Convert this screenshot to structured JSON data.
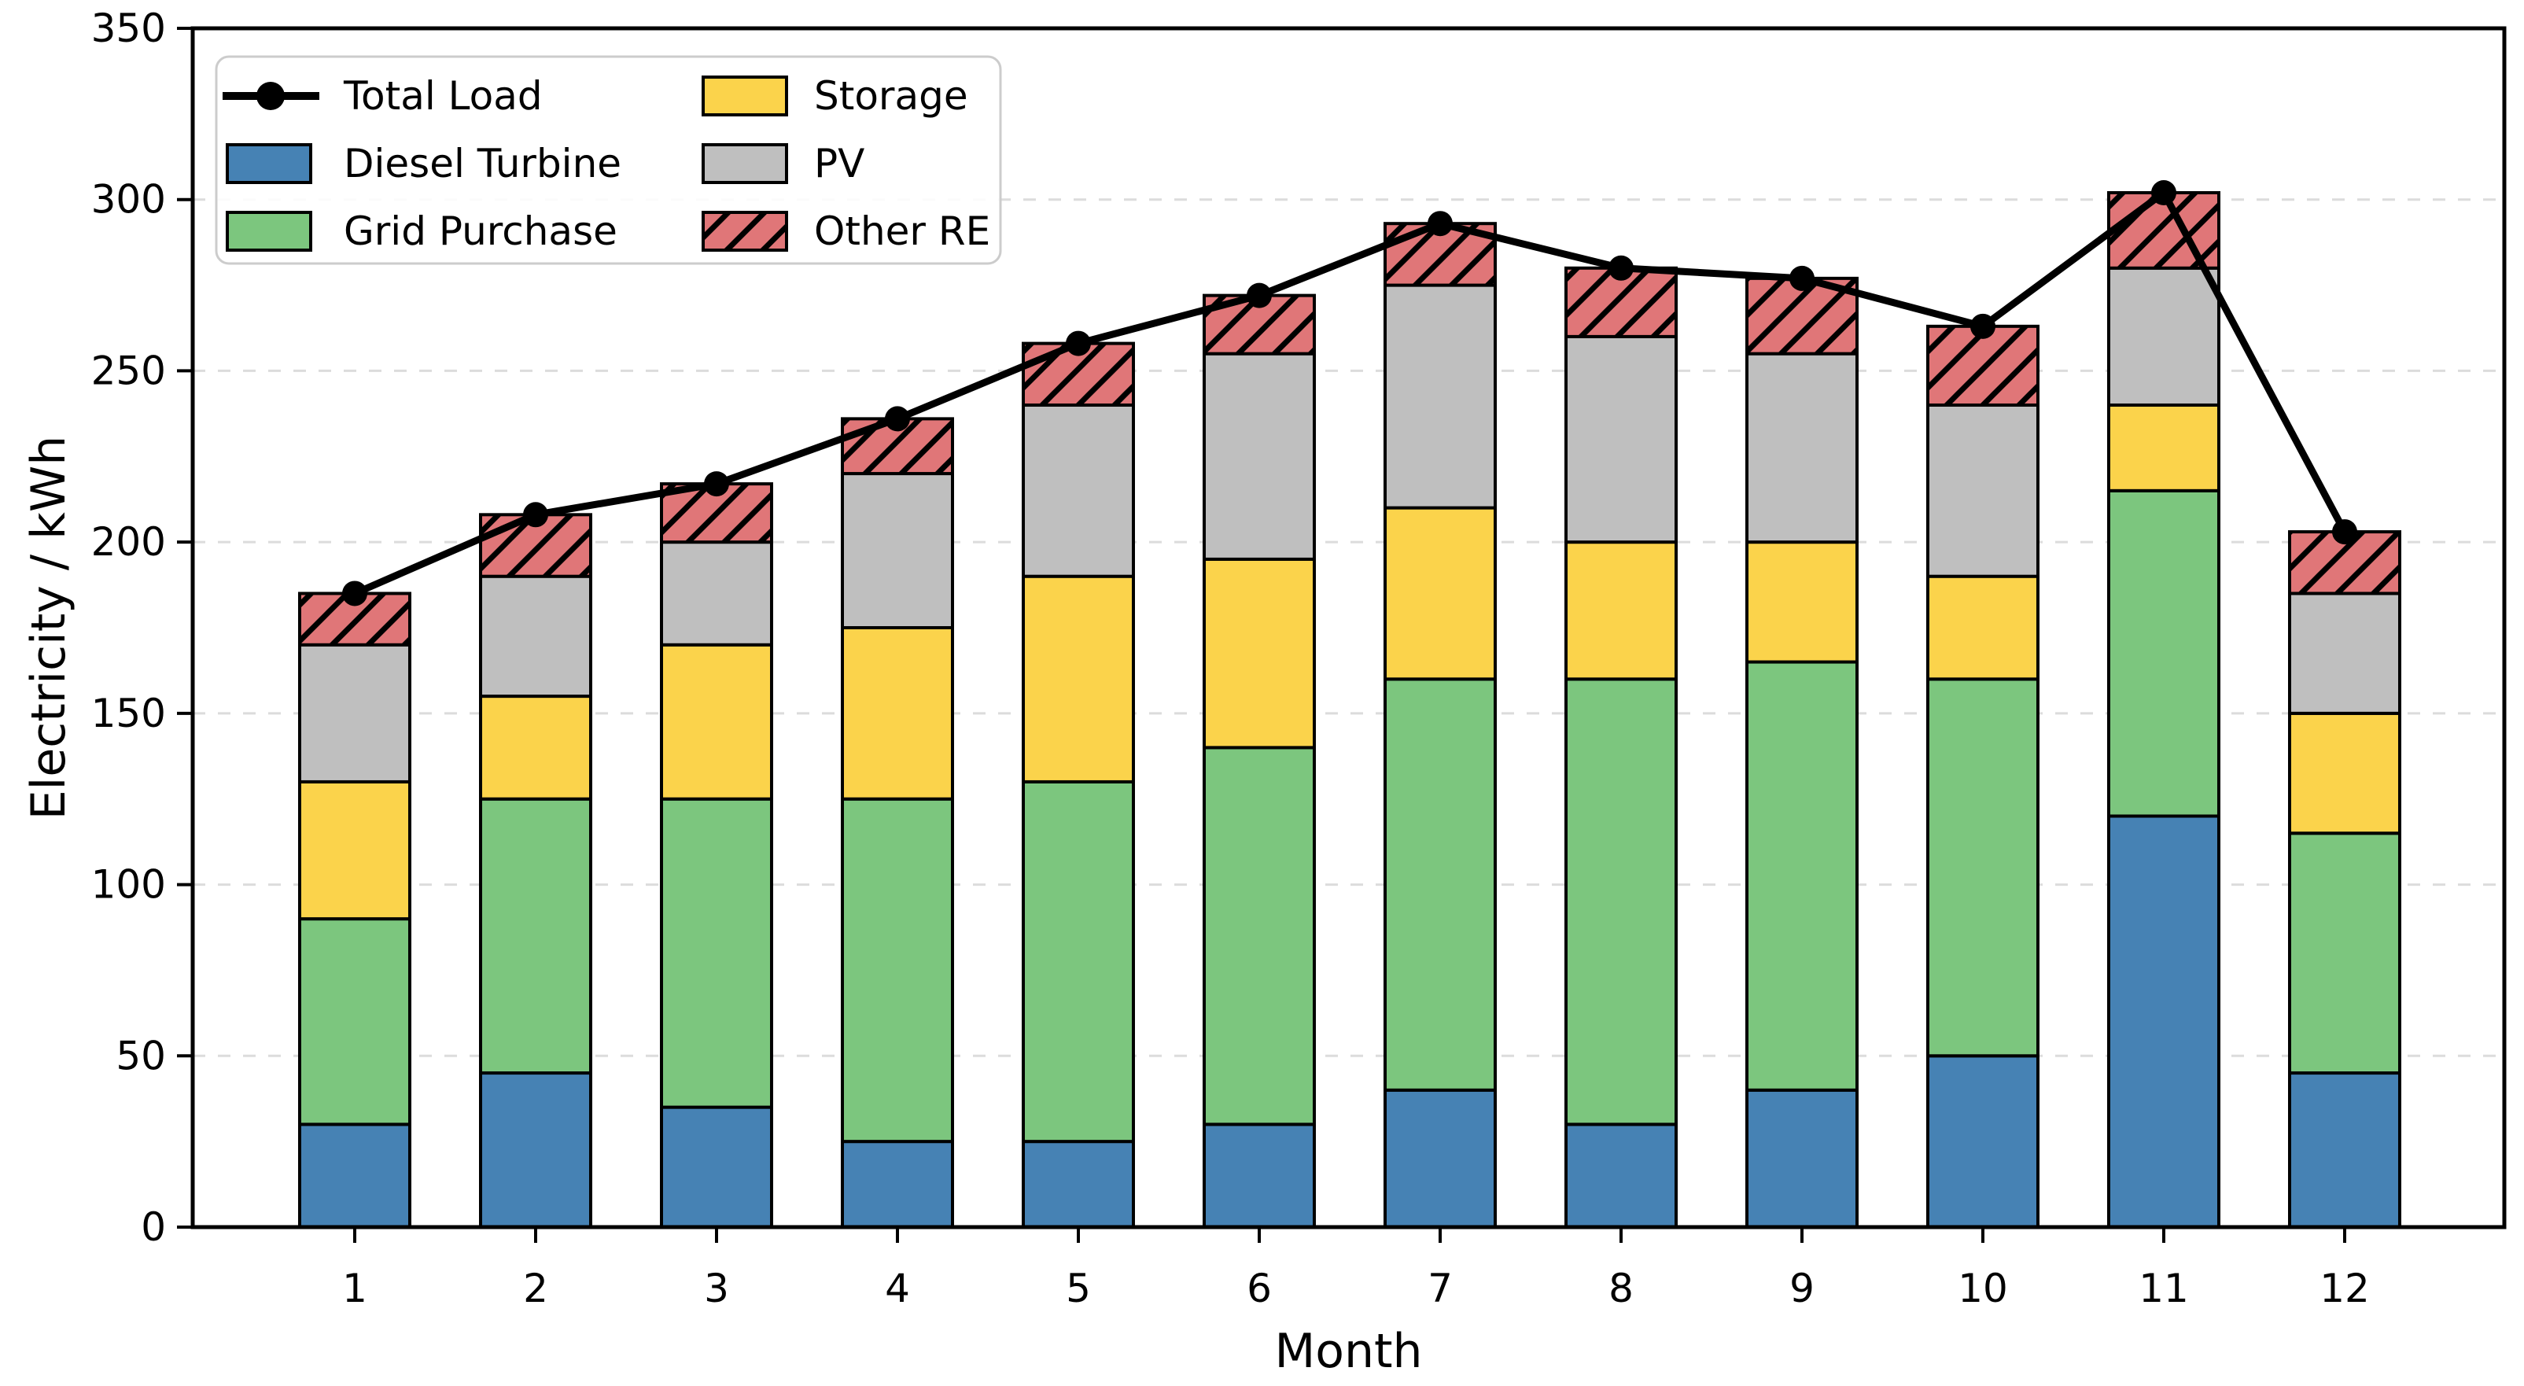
{
  "chart_data": {
    "type": "bar",
    "subtype": "stacked-bars-with-total-line",
    "title": "",
    "xlabel": "Month",
    "ylabel": "Electricity / kWh",
    "categories": [
      "1",
      "2",
      "3",
      "4",
      "5",
      "6",
      "7",
      "8",
      "9",
      "10",
      "11",
      "12"
    ],
    "series": [
      {
        "name": "Diesel Turbine",
        "color": "#4682B4",
        "hatch": false,
        "values": [
          30,
          45,
          35,
          25,
          25,
          30,
          40,
          30,
          40,
          50,
          120,
          45
        ]
      },
      {
        "name": "Grid Purchase",
        "color": "#7CC67E",
        "hatch": false,
        "values": [
          60,
          80,
          90,
          100,
          105,
          110,
          120,
          130,
          125,
          110,
          95,
          70
        ]
      },
      {
        "name": "Storage",
        "color": "#FBD34B",
        "hatch": false,
        "values": [
          40,
          30,
          45,
          50,
          60,
          55,
          50,
          40,
          35,
          30,
          25,
          35
        ]
      },
      {
        "name": "PV",
        "color": "#BFBFBF",
        "hatch": false,
        "values": [
          40,
          35,
          30,
          45,
          50,
          60,
          65,
          60,
          55,
          50,
          40,
          35
        ]
      },
      {
        "name": "Other RE",
        "color": "#E07678",
        "hatch": true,
        "values": [
          15,
          18,
          17,
          16,
          18,
          17,
          18,
          20,
          22,
          23,
          22,
          18
        ]
      }
    ],
    "cumulative_tops": {
      "diesel_turbine": [
        30,
        45,
        35,
        25,
        25,
        30,
        40,
        30,
        40,
        50,
        120,
        45
      ],
      "grid_purchase": [
        90,
        125,
        125,
        125,
        130,
        140,
        160,
        160,
        165,
        160,
        215,
        115
      ],
      "storage": [
        130,
        155,
        170,
        175,
        190,
        195,
        210,
        200,
        200,
        190,
        240,
        150
      ],
      "pv": [
        170,
        190,
        200,
        220,
        240,
        255,
        275,
        260,
        255,
        240,
        280,
        185
      ],
      "other_re": [
        185,
        208,
        217,
        236,
        258,
        272,
        293,
        280,
        277,
        263,
        302,
        203
      ]
    },
    "line_series": {
      "name": "Total Load",
      "color": "#000000",
      "marker": "circle",
      "values": [
        185,
        208,
        217,
        236,
        258,
        272,
        293,
        280,
        277,
        263,
        302,
        203
      ]
    },
    "ylim": [
      0,
      350
    ],
    "yticks": [
      0,
      50,
      100,
      150,
      200,
      250,
      300,
      350
    ],
    "grid": "horizontal-dashed",
    "legend": {
      "position": "upper-left",
      "columns": 2,
      "entries": [
        {
          "label": "Total Load",
          "swatch": "line-marker",
          "color": "#000000",
          "column": 0,
          "row": 0
        },
        {
          "label": "Diesel Turbine",
          "swatch": "patch",
          "color": "#4682B4",
          "column": 0,
          "row": 1
        },
        {
          "label": " Grid Purchase",
          "swatch": "patch",
          "color": "#7CC67E",
          "column": 0,
          "row": 2
        },
        {
          "label": "Storage",
          "swatch": "patch",
          "color": "#FBD34B",
          "column": 1,
          "row": 0
        },
        {
          "label": "PV",
          "swatch": "patch",
          "color": "#BFBFBF",
          "column": 1,
          "row": 1
        },
        {
          "label": "Other RE",
          "swatch": "patch",
          "color": "#E07678",
          "hatch": true,
          "column": 1,
          "row": 2
        }
      ]
    },
    "colors": {
      "background": "#FFFFFF",
      "gridline": "#DCDCDC",
      "axis": "#000000",
      "bar_edge": "#000000",
      "legend_border": "#CCCCCC",
      "legend_fill": "#FFFFFF"
    }
  }
}
